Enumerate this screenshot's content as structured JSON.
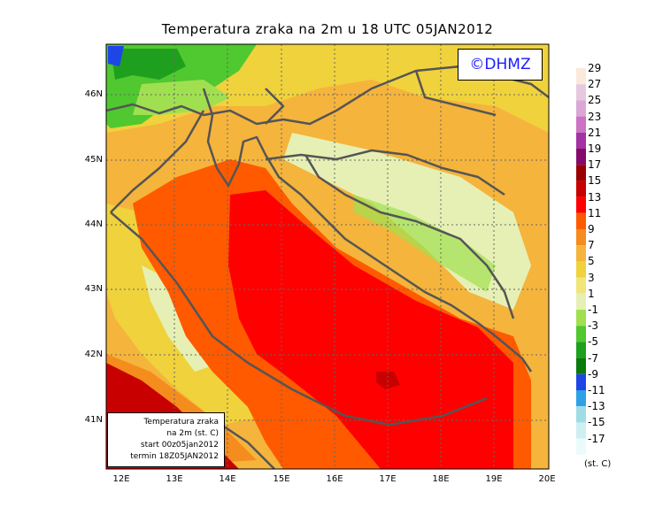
{
  "title": "Temperatura zraka na 2m u 18 UTC 05JAN2012",
  "copyright": "©DHMZ",
  "info_box": {
    "line1": "Temperatura zraka",
    "line2": "na 2m (st. C)",
    "line3": "start 00z05jan2012",
    "line4": "termin 18Z05JAN2012"
  },
  "lat_labels": [
    "46N",
    "45N",
    "44N",
    "43N",
    "42N",
    "41N"
  ],
  "lon_labels": [
    "12E",
    "13E",
    "14E",
    "15E",
    "16E",
    "17E",
    "18E",
    "19E",
    "20E"
  ],
  "legend": {
    "unit": "(st. C)",
    "labels": [
      "29",
      "27",
      "25",
      "23",
      "21",
      "19",
      "17",
      "15",
      "13",
      "11",
      "9",
      "7",
      "5",
      "3",
      "1",
      "-1",
      "-3",
      "-5",
      "-7",
      "-9",
      "-11",
      "-13",
      "-15",
      "-17"
    ],
    "colors": [
      "#fbe9dc",
      "#e6c9df",
      "#dba8d6",
      "#cc73c6",
      "#a432a3",
      "#830c6b",
      "#9b0000",
      "#c80000",
      "#ff0000",
      "#ff5a00",
      "#f58c1e",
      "#f5b43c",
      "#f0d23c",
      "#f0e67a",
      "#e6f0b4",
      "#a0e050",
      "#50c830",
      "#1ea01e",
      "#0a7a0a",
      "#1e46e6",
      "#2ea0e6",
      "#a0dce6",
      "#cdeff2",
      "#ebfbfb"
    ]
  }
}
